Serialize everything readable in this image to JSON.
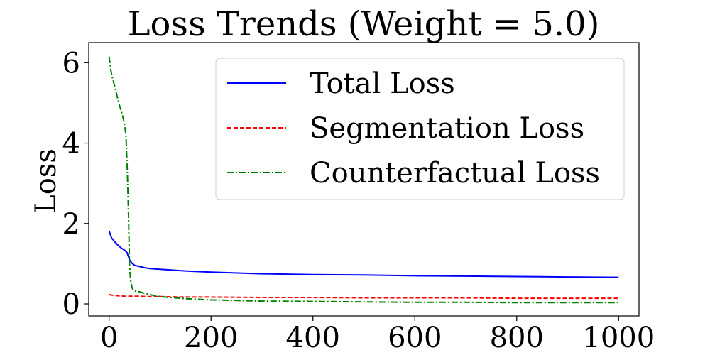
{
  "chart_data": {
    "type": "line",
    "title": "Loss Trends (Weight = 5.0)",
    "xlabel": "",
    "ylabel": "Loss",
    "xlim": [
      -40,
      1040
    ],
    "ylim": [
      -0.3,
      6.5
    ],
    "xticks": [
      0,
      200,
      400,
      600,
      800,
      1000
    ],
    "yticks": [
      0,
      2,
      4,
      6
    ],
    "legend_position": "top-right",
    "grid": false,
    "series": [
      {
        "name": "Total Loss",
        "color": "#0000ff",
        "style": "solid",
        "x": [
          0,
          3,
          5,
          10,
          15,
          20,
          25,
          30,
          35,
          40,
          45,
          50,
          60,
          70,
          80,
          100,
          150,
          200,
          300,
          400,
          500,
          600,
          700,
          800,
          900,
          1000
        ],
        "y": [
          1.82,
          1.7,
          1.64,
          1.56,
          1.49,
          1.43,
          1.38,
          1.34,
          1.28,
          1.1,
          1.01,
          0.96,
          0.93,
          0.9,
          0.88,
          0.86,
          0.82,
          0.79,
          0.75,
          0.73,
          0.72,
          0.7,
          0.69,
          0.68,
          0.67,
          0.66
        ]
      },
      {
        "name": "Segmentation Loss",
        "color": "#ff0000",
        "style": "dashed",
        "x": [
          0,
          5,
          10,
          20,
          30,
          40,
          50,
          60,
          80,
          100,
          150,
          200,
          300,
          400,
          500,
          600,
          700,
          800,
          900,
          1000
        ],
        "y": [
          0.23,
          0.22,
          0.21,
          0.2,
          0.19,
          0.19,
          0.19,
          0.19,
          0.18,
          0.18,
          0.17,
          0.17,
          0.16,
          0.16,
          0.15,
          0.15,
          0.15,
          0.14,
          0.14,
          0.14
        ]
      },
      {
        "name": "Counterfactual Loss",
        "color": "#008000",
        "style": "dashdot",
        "x": [
          0,
          3,
          5,
          10,
          15,
          20,
          25,
          30,
          33,
          36,
          38,
          40,
          42,
          45,
          48,
          50,
          55,
          60,
          70,
          80,
          100,
          150,
          200,
          300,
          400,
          500,
          600,
          700,
          800,
          900,
          1000
        ],
        "y": [
          6.15,
          5.85,
          5.7,
          5.45,
          5.2,
          4.95,
          4.75,
          4.5,
          4.2,
          3.2,
          2.2,
          1.0,
          0.6,
          0.4,
          0.33,
          0.32,
          0.31,
          0.3,
          0.26,
          0.23,
          0.18,
          0.13,
          0.1,
          0.07,
          0.06,
          0.05,
          0.04,
          0.04,
          0.03,
          0.03,
          0.03
        ]
      }
    ]
  }
}
